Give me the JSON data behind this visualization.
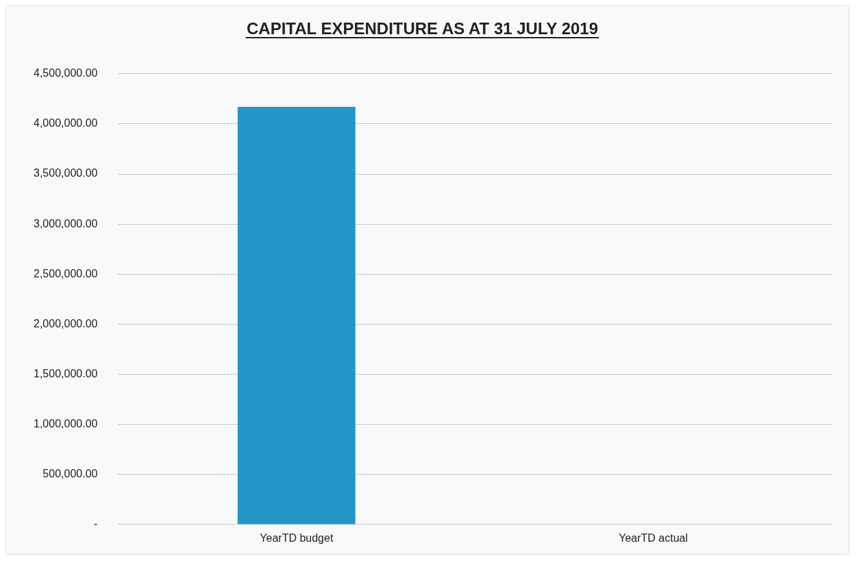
{
  "chart_data": {
    "type": "bar",
    "title": "CAPITAL EXPENDITURE AS AT 31 JULY 2019",
    "categories": [
      "YearTD budget",
      "YearTD actual"
    ],
    "values": [
      4170000,
      0
    ],
    "color": "#2596c8",
    "ylim": [
      0,
      4500000
    ],
    "yticks": [
      {
        "value": 0,
        "label": "-"
      },
      {
        "value": 500000,
        "label": "500,000.00"
      },
      {
        "value": 1000000,
        "label": "1,000,000.00"
      },
      {
        "value": 1500000,
        "label": "1,500,000.00"
      },
      {
        "value": 2000000,
        "label": "2,000,000.00"
      },
      {
        "value": 2500000,
        "label": "2,500,000.00"
      },
      {
        "value": 3000000,
        "label": "3,000,000.00"
      },
      {
        "value": 3500000,
        "label": "3,500,000.00"
      },
      {
        "value": 4000000,
        "label": "4,000,000.00"
      },
      {
        "value": 4500000,
        "label": "4,500,000.00"
      }
    ],
    "grid": "y",
    "legend": false
  }
}
